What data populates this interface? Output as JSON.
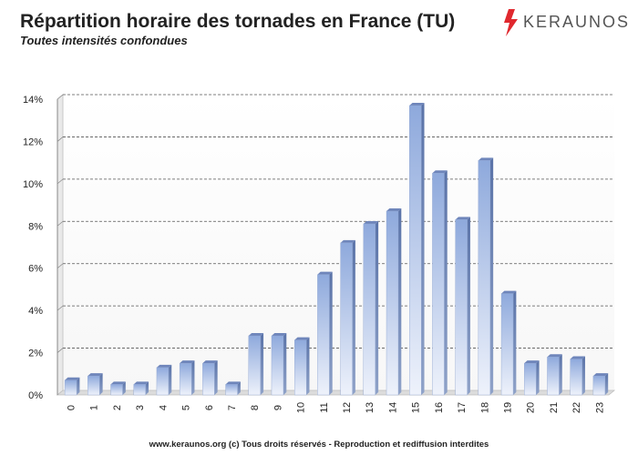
{
  "header": {
    "title": "Répartition horaire des tornades en France (TU)",
    "subtitle": "Toutes intensités confondues"
  },
  "brand": {
    "name": "KERAUNOS",
    "logo_icon": "lightning-bolt-icon",
    "accent": "#e0282e"
  },
  "footer": {
    "text": "www.keraunos.org  (c) Tous droits réservés - Reproduction et rediffusion interdites"
  },
  "chart_data": {
    "type": "bar",
    "title": "Répartition horaire des tornades en France (TU)",
    "subtitle": "Toutes intensités confondues",
    "xlabel": "",
    "ylabel": "",
    "categories": [
      "0",
      "1",
      "2",
      "3",
      "4",
      "5",
      "6",
      "7",
      "8",
      "9",
      "10",
      "11",
      "12",
      "13",
      "14",
      "15",
      "16",
      "17",
      "18",
      "19",
      "20",
      "21",
      "22",
      "23"
    ],
    "values": [
      0.7,
      0.9,
      0.5,
      0.5,
      1.3,
      1.5,
      1.5,
      0.5,
      2.8,
      2.8,
      2.6,
      5.7,
      7.2,
      8.1,
      8.7,
      13.7,
      10.5,
      8.3,
      11.1,
      4.8,
      1.5,
      1.8,
      1.7,
      0.9
    ],
    "ylim": [
      0,
      14
    ],
    "yticks": [
      0,
      2,
      4,
      6,
      8,
      10,
      12,
      14
    ],
    "ytick_labels": [
      "0%",
      "2%",
      "4%",
      "6%",
      "8%",
      "10%",
      "12%",
      "14%"
    ],
    "grid": true,
    "legend": "none",
    "bar_color_top": "#8ea9dc",
    "bar_color_bottom": "#e8eefa"
  }
}
